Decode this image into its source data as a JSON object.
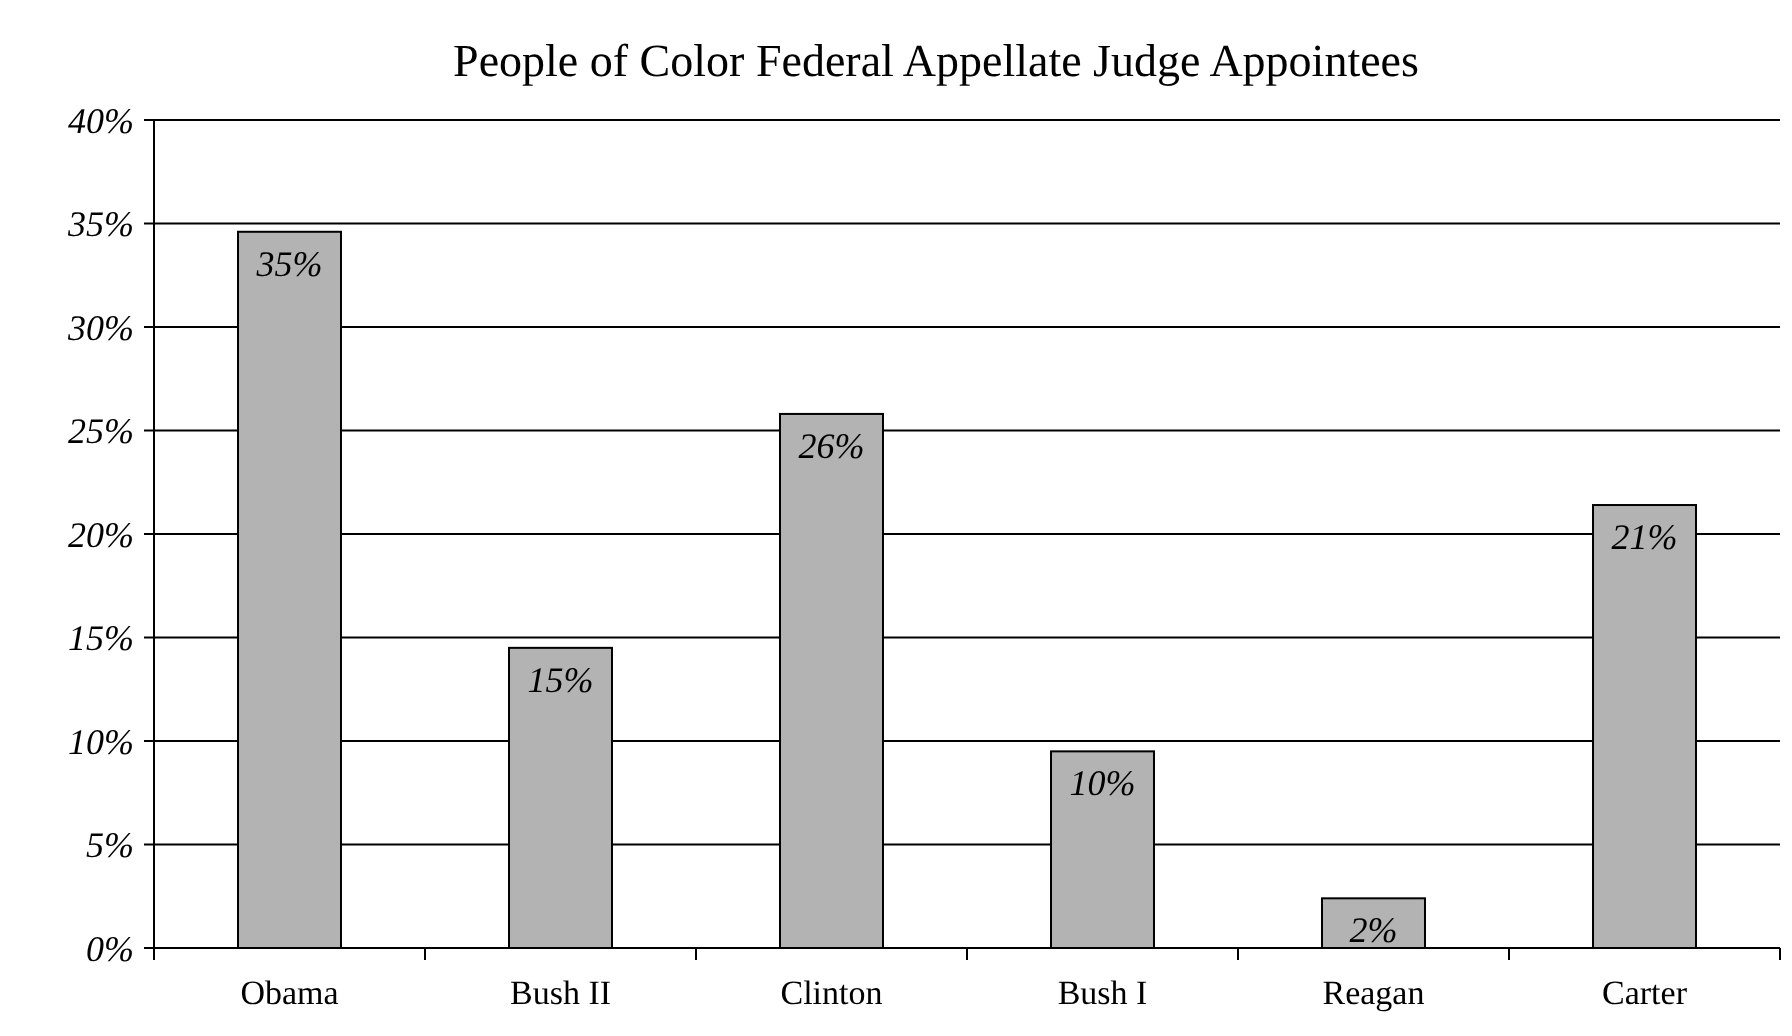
{
  "chart_data": {
    "type": "bar",
    "title": "People of Color Federal Appellate Judge Appointees",
    "categories": [
      "Obama",
      "Bush II",
      "Clinton",
      "Bush I",
      "Reagan",
      "Carter"
    ],
    "values": [
      34.6,
      14.5,
      25.8,
      9.5,
      2.4,
      21.4
    ],
    "value_labels": [
      "35%",
      "15%",
      "26%",
      "10%",
      "2%",
      "21%"
    ],
    "color": "#b3b3b3",
    "ylim": [
      0,
      40
    ],
    "yticks": [
      {
        "value": 0,
        "label": "0%"
      },
      {
        "value": 5,
        "label": "5%"
      },
      {
        "value": 10,
        "label": "10%"
      },
      {
        "value": 15,
        "label": "15%"
      },
      {
        "value": 20,
        "label": "20%"
      },
      {
        "value": 25,
        "label": "25%"
      },
      {
        "value": 30,
        "label": "30%"
      },
      {
        "value": 35,
        "label": "35%"
      },
      {
        "value": 40,
        "label": "40%"
      }
    ],
    "grid": "y"
  }
}
